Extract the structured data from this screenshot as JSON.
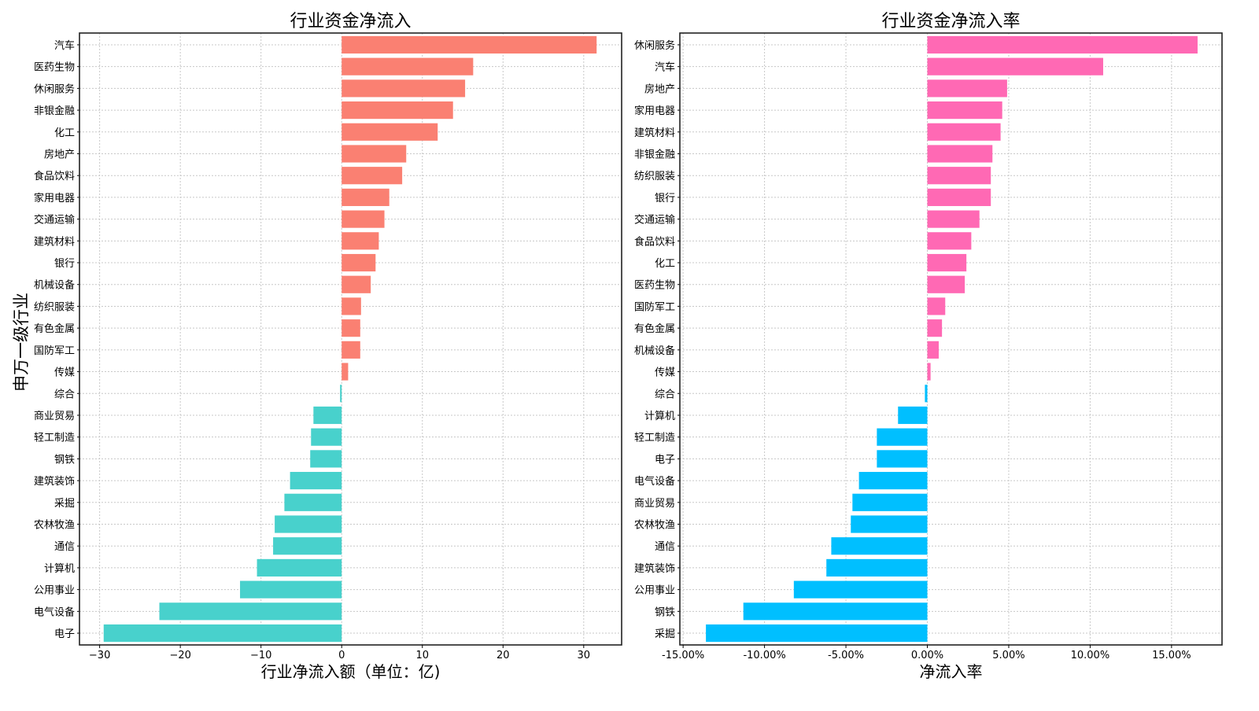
{
  "y_shared_label": "申万一级行业",
  "chart_data": [
    {
      "type": "bar",
      "orientation": "horizontal",
      "title": "行业资金净流入",
      "xlabel": "行业净流入额（单位：亿)",
      "ylabel": "申万一级行业",
      "xlim": [
        -32.5,
        34.7
      ],
      "xticks": [
        -30,
        -20,
        -10,
        0,
        10,
        20,
        30
      ],
      "xtick_labels": [
        "−30",
        "−20",
        "−10",
        "0",
        "10",
        "20",
        "30"
      ],
      "grid": true,
      "positive_color": "#FA8072",
      "negative_color": "#48D1CC",
      "categories": [
        "汽车",
        "医药生物",
        "休闲服务",
        "非银金融",
        "化工",
        "房地产",
        "食品饮料",
        "家用电器",
        "交通运输",
        "建筑材料",
        "银行",
        "机械设备",
        "纺织服装",
        "有色金属",
        "国防军工",
        "传媒",
        "综合",
        "商业贸易",
        "轻工制造",
        "钢铁",
        "建筑装饰",
        "采掘",
        "农林牧渔",
        "通信",
        "计算机",
        "公用事业",
        "电气设备",
        "电子"
      ],
      "values": [
        31.6,
        16.3,
        15.3,
        13.8,
        11.9,
        8.0,
        7.5,
        5.9,
        5.3,
        4.6,
        4.2,
        3.6,
        2.4,
        2.3,
        2.3,
        0.8,
        -0.2,
        -3.5,
        -3.8,
        -3.9,
        -6.4,
        -7.1,
        -8.3,
        -8.5,
        -10.5,
        -12.6,
        -22.6,
        -29.5
      ]
    },
    {
      "type": "bar",
      "orientation": "horizontal",
      "title": "行业资金净流入率",
      "xlabel": "净流入率",
      "ylabel": "",
      "xlim": [
        -15.2,
        18.1
      ],
      "xticks": [
        -15,
        -10,
        -5,
        0,
        5,
        10,
        15
      ],
      "xtick_labels": [
        "-15.00%",
        "-10.00%",
        "-5.00%",
        "0.00%",
        "5.00%",
        "10.00%",
        "15.00%"
      ],
      "grid": true,
      "positive_color": "#FF69B4",
      "negative_color": "#00BFFF",
      "categories": [
        "休闲服务",
        "汽车",
        "房地产",
        "家用电器",
        "建筑材料",
        "非银金融",
        "纺织服装",
        "银行",
        "交通运输",
        "食品饮料",
        "化工",
        "医药生物",
        "国防军工",
        "有色金属",
        "机械设备",
        "传媒",
        "综合",
        "计算机",
        "轻工制造",
        "电子",
        "电气设备",
        "商业贸易",
        "农林牧渔",
        "通信",
        "建筑装饰",
        "公用事业",
        "钢铁",
        "采掘"
      ],
      "values": [
        16.6,
        10.8,
        4.9,
        4.6,
        4.5,
        4.0,
        3.9,
        3.9,
        3.2,
        2.7,
        2.4,
        2.3,
        1.1,
        0.9,
        0.7,
        0.2,
        -0.15,
        -1.8,
        -3.1,
        -3.1,
        -4.2,
        -4.6,
        -4.7,
        -5.9,
        -6.2,
        -8.2,
        -11.3,
        -13.6
      ]
    }
  ]
}
